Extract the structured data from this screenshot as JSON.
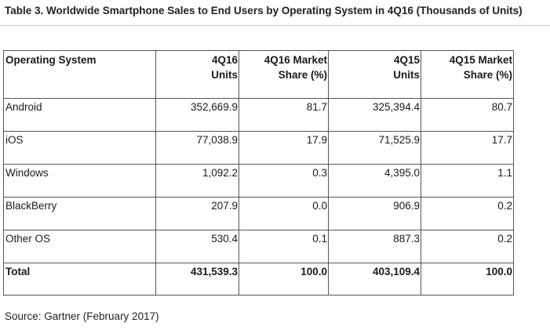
{
  "title": "Table 3. Worldwide Smartphone Sales to End Users by Operating System in 4Q16 (Thousands of Units)",
  "columns": [
    [
      "Operating System"
    ],
    [
      "4Q16",
      "Units"
    ],
    [
      "4Q16 Market",
      "Share (%)"
    ],
    [
      "4Q15",
      "Units"
    ],
    [
      "4Q15 Market",
      "Share (%)"
    ]
  ],
  "rows": [
    [
      "Android",
      "352,669.9",
      "81.7",
      "325,394.4",
      "80.7"
    ],
    [
      "iOS",
      "77,038.9",
      "17.9",
      "71,525.9",
      "17.7"
    ],
    [
      "Windows",
      "1,092.2",
      "0.3",
      "4,395.0",
      "1.1"
    ],
    [
      "BlackBerry",
      "207.9",
      "0.0",
      "906.9",
      "0.2"
    ],
    [
      "Other OS",
      "530.4",
      "0.1",
      "887.3",
      "0.2"
    ]
  ],
  "total": [
    "Total",
    "431,539.3",
    "100.0",
    "403,109.4",
    "100.0"
  ],
  "source": "Source: Gartner (February 2017)"
}
